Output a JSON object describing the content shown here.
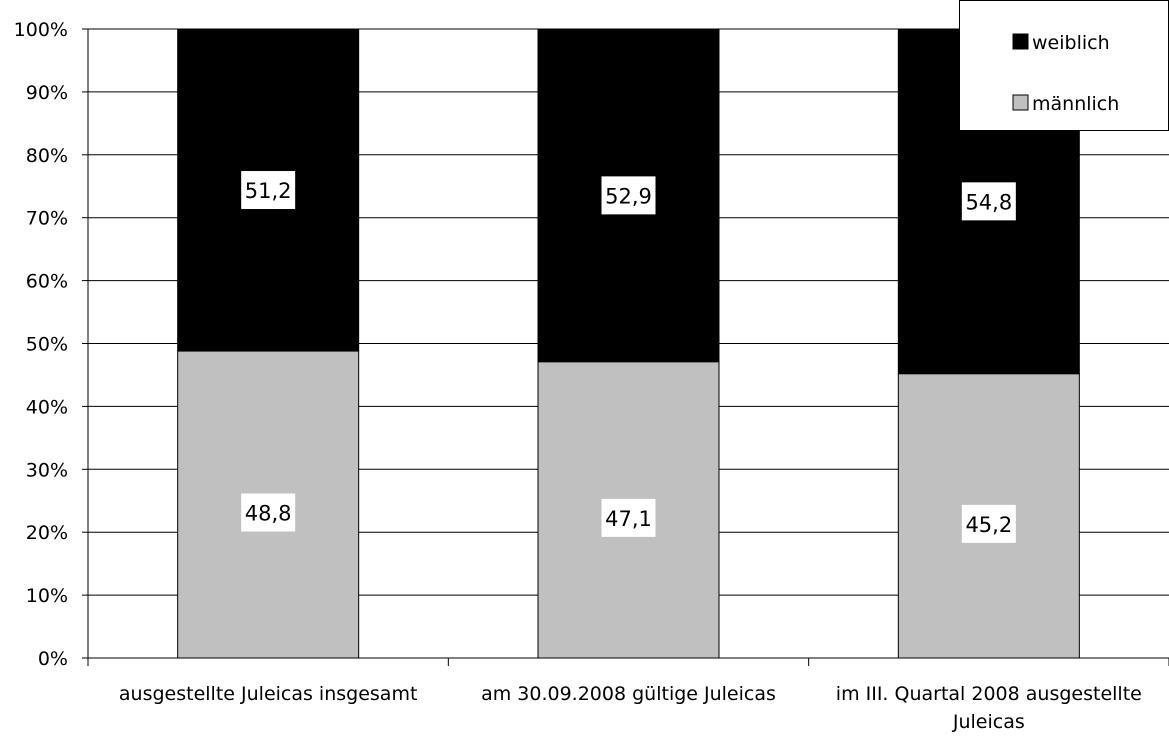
{
  "chart_data": {
    "type": "bar",
    "stacked": true,
    "percent_stacked": true,
    "categories": [
      [
        "ausgestellte Juleicas insgesamt"
      ],
      [
        "am 30.09.2008 gültige Juleicas"
      ],
      [
        "im III. Quartal 2008 ausgestellte",
        "Juleicas"
      ]
    ],
    "series": [
      {
        "name": "männlich",
        "values": [
          48.8,
          47.1,
          45.2
        ],
        "labels": [
          "48,8",
          "47,1",
          "45,2"
        ]
      },
      {
        "name": "weiblich",
        "values": [
          51.2,
          52.9,
          54.8
        ],
        "labels": [
          "51,2",
          "52,9",
          "54,8"
        ]
      }
    ],
    "y_ticks": [
      "0%",
      "10%",
      "20%",
      "30%",
      "40%",
      "50%",
      "60%",
      "70%",
      "80%",
      "90%",
      "100%"
    ],
    "ylim": [
      0,
      100
    ],
    "grid": true,
    "legend_position": "top-right",
    "legend_order": [
      "weiblich",
      "männlich"
    ],
    "colors": {
      "männlich": "#c0c0c0",
      "weiblich": "#000000"
    }
  }
}
